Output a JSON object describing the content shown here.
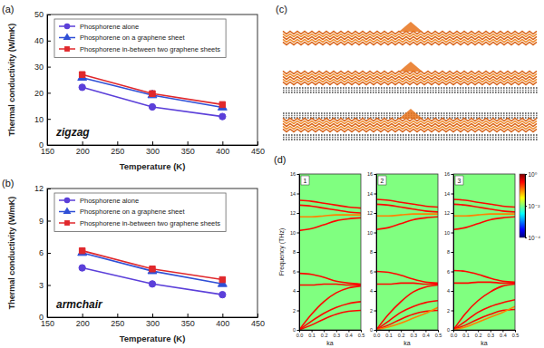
{
  "chart_data": [
    {
      "type": "line",
      "panel": "(a)",
      "annotation": "zigzag",
      "x_label": "Temperature (K)",
      "y_label": "Thermal conductivity (W/mK)",
      "xlim": [
        150,
        450
      ],
      "xticks": [
        150,
        200,
        250,
        300,
        350,
        400,
        450
      ],
      "ylim": [
        0,
        50
      ],
      "yticks": [
        0,
        10,
        20,
        30,
        40,
        50
      ],
      "legend": "upper left",
      "x": [
        200,
        300,
        400
      ],
      "series": [
        {
          "name": "Phosphorene alone",
          "color": "#5b3fd9",
          "marker": "circle",
          "values": [
            22.1,
            14.6,
            10.9
          ]
        },
        {
          "name": "Phosphorene on a graphene sheet",
          "color": "#2f4fd6",
          "marker": "triangle",
          "values": [
            25.8,
            19.1,
            14.4
          ]
        },
        {
          "name": "Phosphorene in-between two graphene sheets",
          "color": "#e0282c",
          "marker": "square",
          "values": [
            27.0,
            19.7,
            15.5
          ]
        }
      ]
    },
    {
      "type": "line",
      "panel": "(b)",
      "annotation": "armchair",
      "x_label": "Temperature (K)",
      "y_label": "Thermal conductivity (W/mK)",
      "xlim": [
        150,
        450
      ],
      "xticks": [
        150,
        200,
        250,
        300,
        350,
        400,
        450
      ],
      "ylim": [
        0,
        12
      ],
      "yticks": [
        0,
        3,
        6,
        9,
        12
      ],
      "legend": "upper left",
      "x": [
        200,
        300,
        400
      ],
      "series": [
        {
          "name": "Phosphorene alone",
          "color": "#5b3fd9",
          "marker": "circle",
          "values": [
            4.6,
            3.1,
            2.1
          ]
        },
        {
          "name": "Phosphorene on a graphene sheet",
          "color": "#2f4fd6",
          "marker": "triangle",
          "values": [
            6.0,
            4.3,
            3.1
          ]
        },
        {
          "name": "Phosphorene in-between two graphene sheets",
          "color": "#e0282c",
          "marker": "square",
          "values": [
            6.2,
            4.5,
            3.5
          ]
        }
      ]
    },
    {
      "type": "image",
      "panel": "(c)"
    },
    {
      "type": "heatmap",
      "panel": "(d)",
      "x_label": "ka",
      "y_label": "Frequency (THz)",
      "xlim": [
        0,
        0.5
      ],
      "xticks": [
        {
          "value": 0,
          "label": "0.0"
        },
        0.1,
        0.2,
        0.3,
        0.4,
        0.5
      ],
      "ylim": [
        0,
        16
      ],
      "yticks": [
        0,
        2,
        4,
        6,
        8,
        10,
        12,
        14,
        16
      ],
      "colorbar": {
        "range": [
          0.0001,
          1
        ],
        "log": true,
        "ticks": [
          {
            "value": 1,
            "label": "10⁰"
          },
          {
            "value": 0.01,
            "label": "10⁻²"
          },
          {
            "value": 0.0001,
            "label": "10⁻⁴"
          }
        ]
      },
      "plots": [
        {
          "title": "1",
          "ka": [
            0,
            0.1,
            0.2,
            0.3,
            0.4,
            0.5
          ],
          "background": 0.01,
          "bands": [
            {
              "intensity": 0.3,
              "values": [
                0,
                0.5,
                1.1,
                1.6,
                1.9,
                2.0
              ]
            },
            {
              "intensity": 0.3,
              "values": [
                0,
                0.9,
                1.7,
                2.3,
                2.7,
                2.9
              ]
            },
            {
              "intensity": 0.3,
              "values": [
                0,
                1.6,
                2.9,
                3.8,
                4.3,
                4.5
              ]
            },
            {
              "intensity": 0.3,
              "values": [
                4.6,
                4.6,
                4.7,
                4.7,
                4.6,
                4.6
              ]
            },
            {
              "intensity": 0.3,
              "values": [
                5.8,
                5.7,
                5.4,
                5.0,
                4.8,
                4.7
              ]
            },
            {
              "intensity": 0.3,
              "values": [
                10.2,
                10.4,
                10.8,
                11.2,
                11.4,
                11.5
              ]
            },
            {
              "intensity": 0.1,
              "values": [
                11.6,
                11.6,
                11.7,
                11.8,
                11.8,
                11.8
              ]
            },
            {
              "intensity": 0.3,
              "values": [
                12.8,
                12.7,
                12.5,
                12.3,
                12.1,
                12.0
              ]
            },
            {
              "intensity": 0.3,
              "values": [
                13.3,
                13.2,
                13.0,
                12.8,
                12.6,
                12.5
              ]
            }
          ]
        },
        {
          "title": "2",
          "ka": [
            0,
            0.1,
            0.2,
            0.3,
            0.4,
            0.5
          ],
          "background": 0.01,
          "bands": [
            {
              "intensity": 0.3,
              "values": [
                0,
                0.5,
                1.1,
                1.6,
                1.9,
                2.0
              ]
            },
            {
              "intensity": 0.3,
              "values": [
                0,
                0.9,
                1.8,
                2.4,
                2.8,
                3.0
              ]
            },
            {
              "intensity": 0.3,
              "values": [
                0,
                1.6,
                2.9,
                3.9,
                4.4,
                4.6
              ]
            },
            {
              "intensity": 0.1,
              "values": [
                0,
                0.3,
                0.7,
                1.2,
                1.7,
                2.3
              ]
            },
            {
              "intensity": 0.3,
              "values": [
                4.7,
                4.7,
                4.8,
                4.8,
                4.7,
                4.7
              ]
            },
            {
              "intensity": 0.3,
              "values": [
                6.0,
                5.9,
                5.6,
                5.2,
                4.9,
                4.8
              ]
            },
            {
              "intensity": 0.3,
              "values": [
                10.3,
                10.5,
                10.9,
                11.3,
                11.5,
                11.6
              ]
            },
            {
              "intensity": 0.1,
              "values": [
                11.7,
                11.7,
                11.8,
                11.9,
                11.9,
                11.9
              ]
            },
            {
              "intensity": 0.3,
              "values": [
                12.9,
                12.8,
                12.6,
                12.4,
                12.2,
                12.1
              ]
            },
            {
              "intensity": 0.3,
              "values": [
                13.4,
                13.3,
                13.1,
                12.9,
                12.7,
                12.6
              ]
            }
          ]
        },
        {
          "title": "3",
          "ka": [
            0,
            0.1,
            0.2,
            0.3,
            0.4,
            0.5
          ],
          "background": 0.01,
          "bands": [
            {
              "intensity": 0.3,
              "values": [
                0,
                0.5,
                1.1,
                1.6,
                2.0,
                2.1
              ]
            },
            {
              "intensity": 0.3,
              "values": [
                0,
                0.9,
                1.8,
                2.4,
                2.8,
                3.1
              ]
            },
            {
              "intensity": 0.3,
              "values": [
                0,
                1.7,
                3.0,
                3.9,
                4.5,
                4.7
              ]
            },
            {
              "intensity": 0.1,
              "values": [
                0,
                0.3,
                0.8,
                1.3,
                1.8,
                2.4
              ]
            },
            {
              "intensity": 0.3,
              "values": [
                4.8,
                4.8,
                4.9,
                4.9,
                4.8,
                4.8
              ]
            },
            {
              "intensity": 0.3,
              "values": [
                6.1,
                6.0,
                5.7,
                5.3,
                5.0,
                4.9
              ]
            },
            {
              "intensity": 0.3,
              "values": [
                10.3,
                10.5,
                10.9,
                11.3,
                11.5,
                11.6
              ]
            },
            {
              "intensity": 0.1,
              "values": [
                11.7,
                11.7,
                11.8,
                11.9,
                11.9,
                11.9
              ]
            },
            {
              "intensity": 0.3,
              "values": [
                12.9,
                12.8,
                12.6,
                12.4,
                12.2,
                12.1
              ]
            },
            {
              "intensity": 0.3,
              "values": [
                13.4,
                13.3,
                13.1,
                12.9,
                12.7,
                12.6
              ]
            }
          ]
        }
      ]
    }
  ]
}
